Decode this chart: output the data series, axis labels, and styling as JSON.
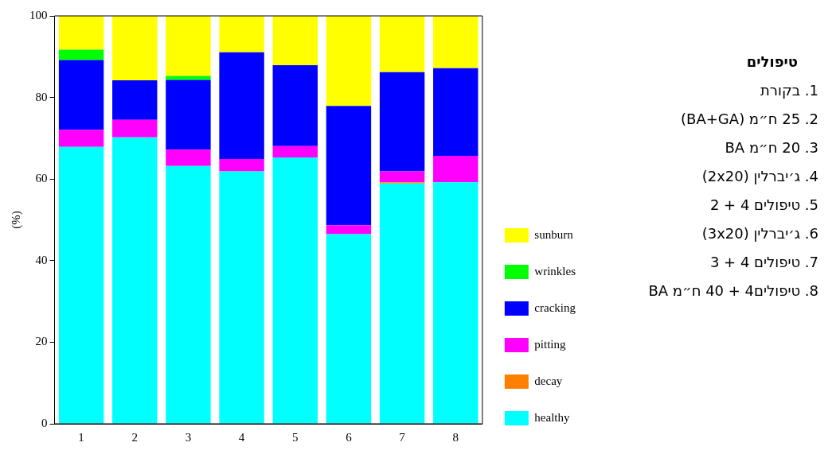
{
  "chart_data": {
    "type": "bar",
    "stacked": true,
    "categories": [
      "1",
      "2",
      "3",
      "4",
      "5",
      "6",
      "7",
      "8"
    ],
    "ylabel": "(%)",
    "ylim": [
      0,
      100
    ],
    "yticks": [
      0,
      20,
      40,
      60,
      80,
      100
    ],
    "grid": false,
    "legend": "right",
    "series": [
      {
        "name": "healthy",
        "color": "#00ffff",
        "values": [
          67.9,
          70.2,
          63.2,
          61.9,
          65.3,
          46.5,
          58.9,
          59.2
        ]
      },
      {
        "name": "decay",
        "color": "#ff8000",
        "values": [
          0,
          0,
          0,
          0,
          0,
          0,
          0.3,
          0
        ]
      },
      {
        "name": "pitting",
        "color": "#ff00ff",
        "values": [
          4.2,
          4.3,
          4,
          3,
          2.8,
          2.2,
          2.7,
          6.5
        ]
      },
      {
        "name": "cracking",
        "color": "#0000ff",
        "values": [
          17.1,
          9.7,
          17.1,
          26.2,
          19.8,
          29.2,
          24.3,
          21.5
        ]
      },
      {
        "name": "wrinkles",
        "color": "#00ff00",
        "values": [
          2.5,
          0,
          1,
          0,
          0,
          0,
          0,
          0
        ]
      },
      {
        "name": "sunburn",
        "color": "#ffff00",
        "values": [
          8.3,
          15.8,
          14.7,
          8.9,
          12.1,
          22.1,
          13.8,
          12.8
        ]
      }
    ],
    "annotations": [
      "טיפולים",
      "1. בקורת",
      "2. 25 ח״מ (BA+GA)",
      "3. 20 ח״מ BA",
      "4. ג׳יברלין (2x20)",
      "5. טיפולים 4 + 2",
      "6. ג׳יברלין (3x20)",
      "7. טיפולים 4 + 3",
      "8. טיפולים4 + 40 ח״מ BA"
    ]
  }
}
